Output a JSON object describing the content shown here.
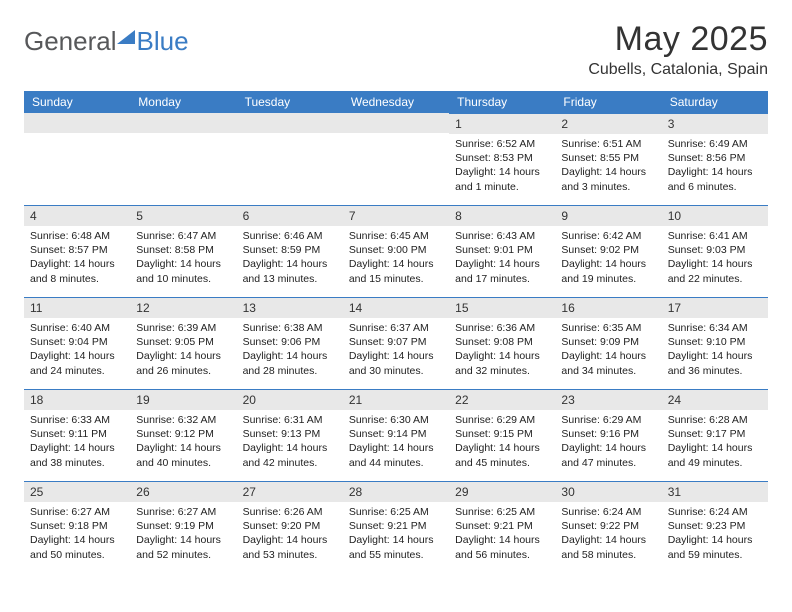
{
  "logo": {
    "part1": "General",
    "part2": "Blue"
  },
  "title": "May 2025",
  "subtitle": "Cubells, Catalonia, Spain",
  "weekdays": [
    "Sunday",
    "Monday",
    "Tuesday",
    "Wednesday",
    "Thursday",
    "Friday",
    "Saturday"
  ],
  "colors": {
    "header_bg": "#3a7cc4",
    "header_text": "#ffffff",
    "daynum_bg": "#e8e8e8",
    "border": "#3a7cc4",
    "text": "#222222"
  },
  "leading_blanks": 4,
  "days": [
    {
      "n": "1",
      "sunrise": "6:52 AM",
      "sunset": "8:53 PM",
      "daylight": "14 hours and 1 minute."
    },
    {
      "n": "2",
      "sunrise": "6:51 AM",
      "sunset": "8:55 PM",
      "daylight": "14 hours and 3 minutes."
    },
    {
      "n": "3",
      "sunrise": "6:49 AM",
      "sunset": "8:56 PM",
      "daylight": "14 hours and 6 minutes."
    },
    {
      "n": "4",
      "sunrise": "6:48 AM",
      "sunset": "8:57 PM",
      "daylight": "14 hours and 8 minutes."
    },
    {
      "n": "5",
      "sunrise": "6:47 AM",
      "sunset": "8:58 PM",
      "daylight": "14 hours and 10 minutes."
    },
    {
      "n": "6",
      "sunrise": "6:46 AM",
      "sunset": "8:59 PM",
      "daylight": "14 hours and 13 minutes."
    },
    {
      "n": "7",
      "sunrise": "6:45 AM",
      "sunset": "9:00 PM",
      "daylight": "14 hours and 15 minutes."
    },
    {
      "n": "8",
      "sunrise": "6:43 AM",
      "sunset": "9:01 PM",
      "daylight": "14 hours and 17 minutes."
    },
    {
      "n": "9",
      "sunrise": "6:42 AM",
      "sunset": "9:02 PM",
      "daylight": "14 hours and 19 minutes."
    },
    {
      "n": "10",
      "sunrise": "6:41 AM",
      "sunset": "9:03 PM",
      "daylight": "14 hours and 22 minutes."
    },
    {
      "n": "11",
      "sunrise": "6:40 AM",
      "sunset": "9:04 PM",
      "daylight": "14 hours and 24 minutes."
    },
    {
      "n": "12",
      "sunrise": "6:39 AM",
      "sunset": "9:05 PM",
      "daylight": "14 hours and 26 minutes."
    },
    {
      "n": "13",
      "sunrise": "6:38 AM",
      "sunset": "9:06 PM",
      "daylight": "14 hours and 28 minutes."
    },
    {
      "n": "14",
      "sunrise": "6:37 AM",
      "sunset": "9:07 PM",
      "daylight": "14 hours and 30 minutes."
    },
    {
      "n": "15",
      "sunrise": "6:36 AM",
      "sunset": "9:08 PM",
      "daylight": "14 hours and 32 minutes."
    },
    {
      "n": "16",
      "sunrise": "6:35 AM",
      "sunset": "9:09 PM",
      "daylight": "14 hours and 34 minutes."
    },
    {
      "n": "17",
      "sunrise": "6:34 AM",
      "sunset": "9:10 PM",
      "daylight": "14 hours and 36 minutes."
    },
    {
      "n": "18",
      "sunrise": "6:33 AM",
      "sunset": "9:11 PM",
      "daylight": "14 hours and 38 minutes."
    },
    {
      "n": "19",
      "sunrise": "6:32 AM",
      "sunset": "9:12 PM",
      "daylight": "14 hours and 40 minutes."
    },
    {
      "n": "20",
      "sunrise": "6:31 AM",
      "sunset": "9:13 PM",
      "daylight": "14 hours and 42 minutes."
    },
    {
      "n": "21",
      "sunrise": "6:30 AM",
      "sunset": "9:14 PM",
      "daylight": "14 hours and 44 minutes."
    },
    {
      "n": "22",
      "sunrise": "6:29 AM",
      "sunset": "9:15 PM",
      "daylight": "14 hours and 45 minutes."
    },
    {
      "n": "23",
      "sunrise": "6:29 AM",
      "sunset": "9:16 PM",
      "daylight": "14 hours and 47 minutes."
    },
    {
      "n": "24",
      "sunrise": "6:28 AM",
      "sunset": "9:17 PM",
      "daylight": "14 hours and 49 minutes."
    },
    {
      "n": "25",
      "sunrise": "6:27 AM",
      "sunset": "9:18 PM",
      "daylight": "14 hours and 50 minutes."
    },
    {
      "n": "26",
      "sunrise": "6:27 AM",
      "sunset": "9:19 PM",
      "daylight": "14 hours and 52 minutes."
    },
    {
      "n": "27",
      "sunrise": "6:26 AM",
      "sunset": "9:20 PM",
      "daylight": "14 hours and 53 minutes."
    },
    {
      "n": "28",
      "sunrise": "6:25 AM",
      "sunset": "9:21 PM",
      "daylight": "14 hours and 55 minutes."
    },
    {
      "n": "29",
      "sunrise": "6:25 AM",
      "sunset": "9:21 PM",
      "daylight": "14 hours and 56 minutes."
    },
    {
      "n": "30",
      "sunrise": "6:24 AM",
      "sunset": "9:22 PM",
      "daylight": "14 hours and 58 minutes."
    },
    {
      "n": "31",
      "sunrise": "6:24 AM",
      "sunset": "9:23 PM",
      "daylight": "14 hours and 59 minutes."
    }
  ],
  "labels": {
    "sunrise": "Sunrise: ",
    "sunset": "Sunset: ",
    "daylight": "Daylight: "
  }
}
